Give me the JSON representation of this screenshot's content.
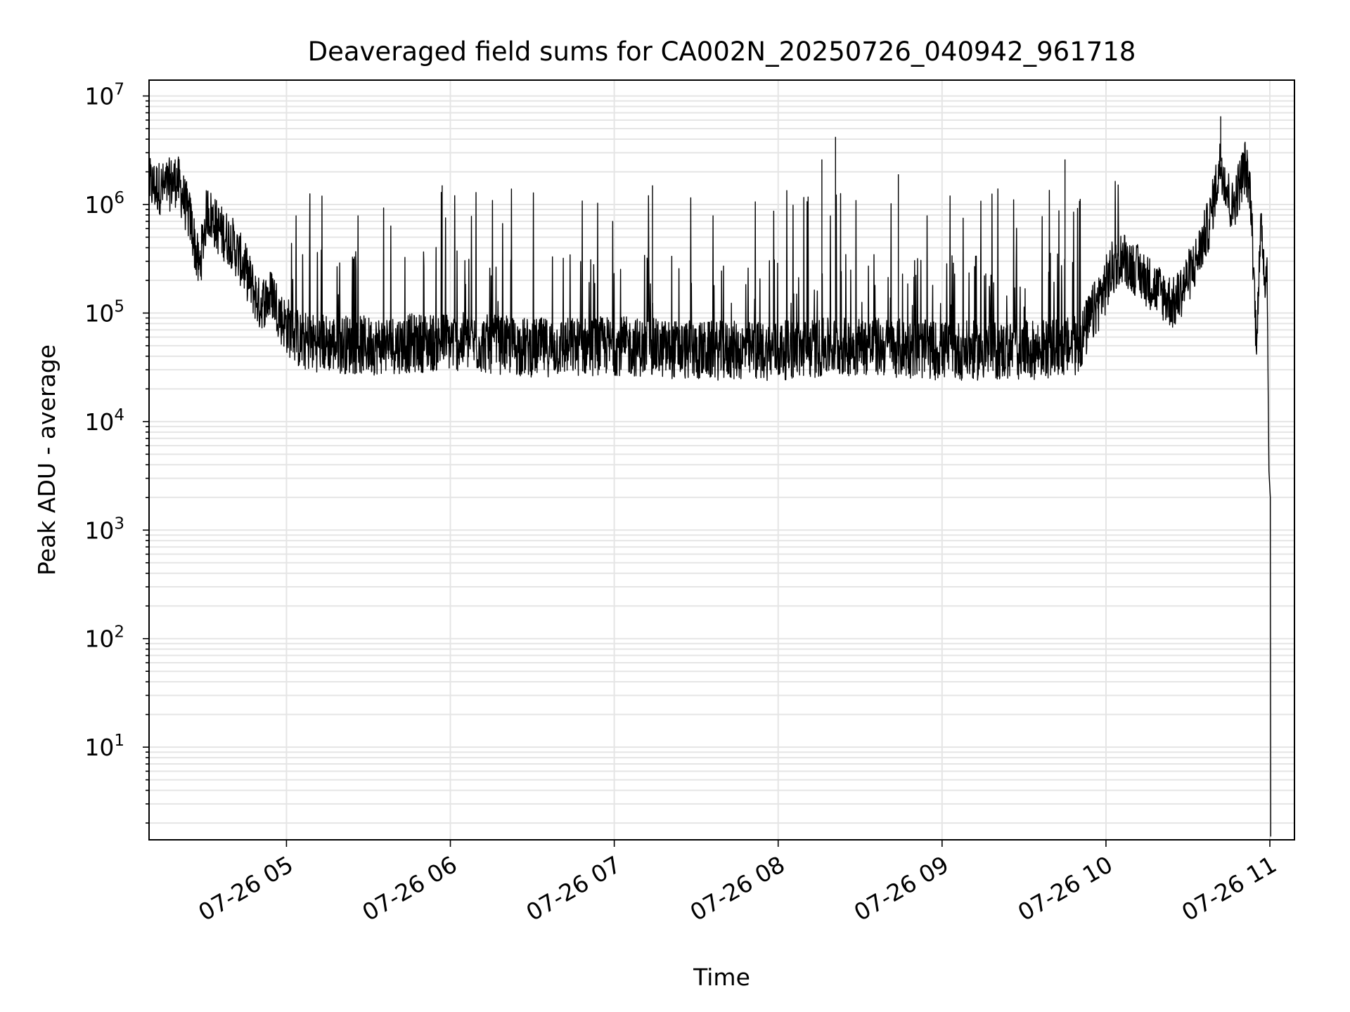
{
  "chart_data": {
    "type": "line",
    "title": "Deaveraged field sums for CA002N_20250726_040942_961718",
    "xlabel": "Time",
    "ylabel": "Peak ADU - average",
    "yscale": "log",
    "ylim": [
      1.4,
      14000000
    ],
    "xlim": [
      "2025-07-26 04:09:42",
      "2025-07-26 11:09:00"
    ],
    "grid": true,
    "x_ticks": [
      {
        "value": "2025-07-26 05:00",
        "label": "07-26 05"
      },
      {
        "value": "2025-07-26 06:00",
        "label": "07-26 06"
      },
      {
        "value": "2025-07-26 07:00",
        "label": "07-26 07"
      },
      {
        "value": "2025-07-26 08:00",
        "label": "07-26 08"
      },
      {
        "value": "2025-07-26 09:00",
        "label": "07-26 09"
      },
      {
        "value": "2025-07-26 10:00",
        "label": "07-26 10"
      },
      {
        "value": "2025-07-26 11:00",
        "label": "07-26 11"
      }
    ],
    "y_ticks": [
      {
        "value": 10,
        "base": "10",
        "exp": "1"
      },
      {
        "value": 100,
        "base": "10",
        "exp": "2"
      },
      {
        "value": 1000,
        "base": "10",
        "exp": "3"
      },
      {
        "value": 10000,
        "base": "10",
        "exp": "4"
      },
      {
        "value": 100000,
        "base": "10",
        "exp": "5"
      },
      {
        "value": 1000000,
        "base": "10",
        "exp": "6"
      },
      {
        "value": 10000000,
        "base": "10",
        "exp": "7"
      }
    ],
    "series": [
      {
        "color": "#000000",
        "points": [
          {
            "x": "2025-07-26 04:10",
            "y": 1500000
          },
          {
            "x": "2025-07-26 04:15",
            "y": 1400000
          },
          {
            "x": "2025-07-26 04:20",
            "y": 1700000
          },
          {
            "x": "2025-07-26 04:25",
            "y": 700000
          },
          {
            "x": "2025-07-26 04:28",
            "y": 250000
          },
          {
            "x": "2025-07-26 04:31",
            "y": 900000
          },
          {
            "x": "2025-07-26 04:35",
            "y": 600000
          },
          {
            "x": "2025-07-26 04:40",
            "y": 450000
          },
          {
            "x": "2025-07-26 04:45",
            "y": 250000
          },
          {
            "x": "2025-07-26 04:50",
            "y": 120000
          },
          {
            "x": "2025-07-26 04:55",
            "y": 150000
          },
          {
            "x": "2025-07-26 04:58",
            "y": 90000
          },
          {
            "x": "2025-07-26 05:05",
            "y": 55000
          },
          {
            "x": "2025-07-26 05:30",
            "y": 50000
          },
          {
            "x": "2025-07-26 06:00",
            "y": 55000
          },
          {
            "x": "2025-07-26 06:30",
            "y": 48000
          },
          {
            "x": "2025-07-26 07:00",
            "y": 50000
          },
          {
            "x": "2025-07-26 07:30",
            "y": 45000
          },
          {
            "x": "2025-07-26 08:00",
            "y": 45000
          },
          {
            "x": "2025-07-26 08:30",
            "y": 50000
          },
          {
            "x": "2025-07-26 09:00",
            "y": 45000
          },
          {
            "x": "2025-07-26 09:30",
            "y": 45000
          },
          {
            "x": "2025-07-26 09:50",
            "y": 50000
          },
          {
            "x": "2025-07-26 10:05",
            "y": 350000
          },
          {
            "x": "2025-07-26 10:15",
            "y": 200000
          },
          {
            "x": "2025-07-26 10:25",
            "y": 120000
          },
          {
            "x": "2025-07-26 10:33",
            "y": 300000
          },
          {
            "x": "2025-07-26 10:38",
            "y": 700000
          },
          {
            "x": "2025-07-26 10:42",
            "y": 2500000
          },
          {
            "x": "2025-07-26 10:46",
            "y": 900000
          },
          {
            "x": "2025-07-26 10:51",
            "y": 2300000
          },
          {
            "x": "2025-07-26 10:53",
            "y": 1200000
          },
          {
            "x": "2025-07-26 10:55",
            "y": 60000
          },
          {
            "x": "2025-07-26 10:57",
            "y": 700000
          },
          {
            "x": "2025-07-26 10:58",
            "y": 230000
          },
          {
            "x": "2025-07-26 10:59",
            "y": 250000
          },
          {
            "x": "2025-07-26 10:59:40",
            "y": 3500
          },
          {
            "x": "2025-07-26 11:00:10",
            "y": 2000
          },
          {
            "x": "2025-07-26 11:00:20",
            "y": 1.5
          }
        ],
        "spikes": [
          {
            "x": "2025-07-26 05:57",
            "y": 1500000
          },
          {
            "x": "2025-07-26 07:14",
            "y": 1500000
          },
          {
            "x": "2025-07-26 08:16",
            "y": 2600000
          },
          {
            "x": "2025-07-26 08:21",
            "y": 4200000
          },
          {
            "x": "2025-07-26 08:44",
            "y": 1900000
          },
          {
            "x": "2025-07-26 09:45",
            "y": 2600000
          },
          {
            "x": "2025-07-26 10:42",
            "y": 6500000
          }
        ]
      }
    ]
  }
}
